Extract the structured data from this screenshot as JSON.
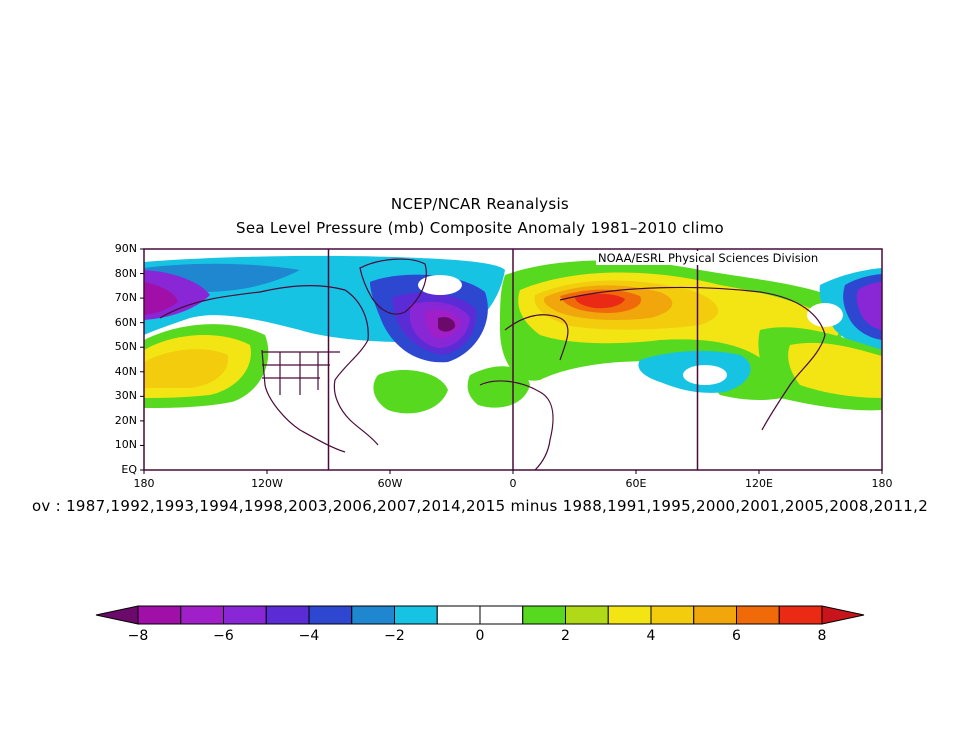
{
  "title_line1": "NCEP/NCAR Reanalysis",
  "title_line2": "Sea Level Pressure (mb) Composite Anomaly 1981–2010 climo",
  "credit": "NOAA/ESRL Physical Sciences Division",
  "subtitle": "ov : 1987,1992,1993,1994,1998,2003,2006,2007,2014,2015 minus 1988,1991,1995,2000,2001,2005,2008,2011,2",
  "map": {
    "projection": "cylindrical-equidistant",
    "lon_range": [
      -180,
      180
    ],
    "lat_range": [
      0,
      90
    ],
    "lat_ticks": [
      "90N",
      "80N",
      "70N",
      "60N",
      "50N",
      "40N",
      "30N",
      "20N",
      "10N",
      "EQ"
    ],
    "lon_ticks": [
      "180",
      "120W",
      "60W",
      "0",
      "60E",
      "120E",
      "180"
    ],
    "highlight_meridians": [
      -90,
      0,
      90
    ]
  },
  "colorbar": {
    "levels": [
      -8,
      -7,
      -6,
      -5,
      -4,
      -3,
      -2,
      -1,
      0,
      1,
      2,
      3,
      4,
      5,
      6,
      7,
      8
    ],
    "labels": [
      "−8",
      "−6",
      "−4",
      "−2",
      "0",
      "2",
      "4",
      "6",
      "8"
    ],
    "colors": [
      "#6b0a6b",
      "#a10fa9",
      "#a11fc9",
      "#8927d6",
      "#5b2bd6",
      "#2d47d0",
      "#1f86d0",
      "#16c3e3",
      "#ffffff",
      "#ffffff",
      "#57d91f",
      "#b0d917",
      "#f3e513",
      "#f3cc0e",
      "#f1a60c",
      "#f06a0a",
      "#ea2a14",
      "#c8141a"
    ],
    "colors_note": "index 0 = below -8, last = above 8"
  }
}
